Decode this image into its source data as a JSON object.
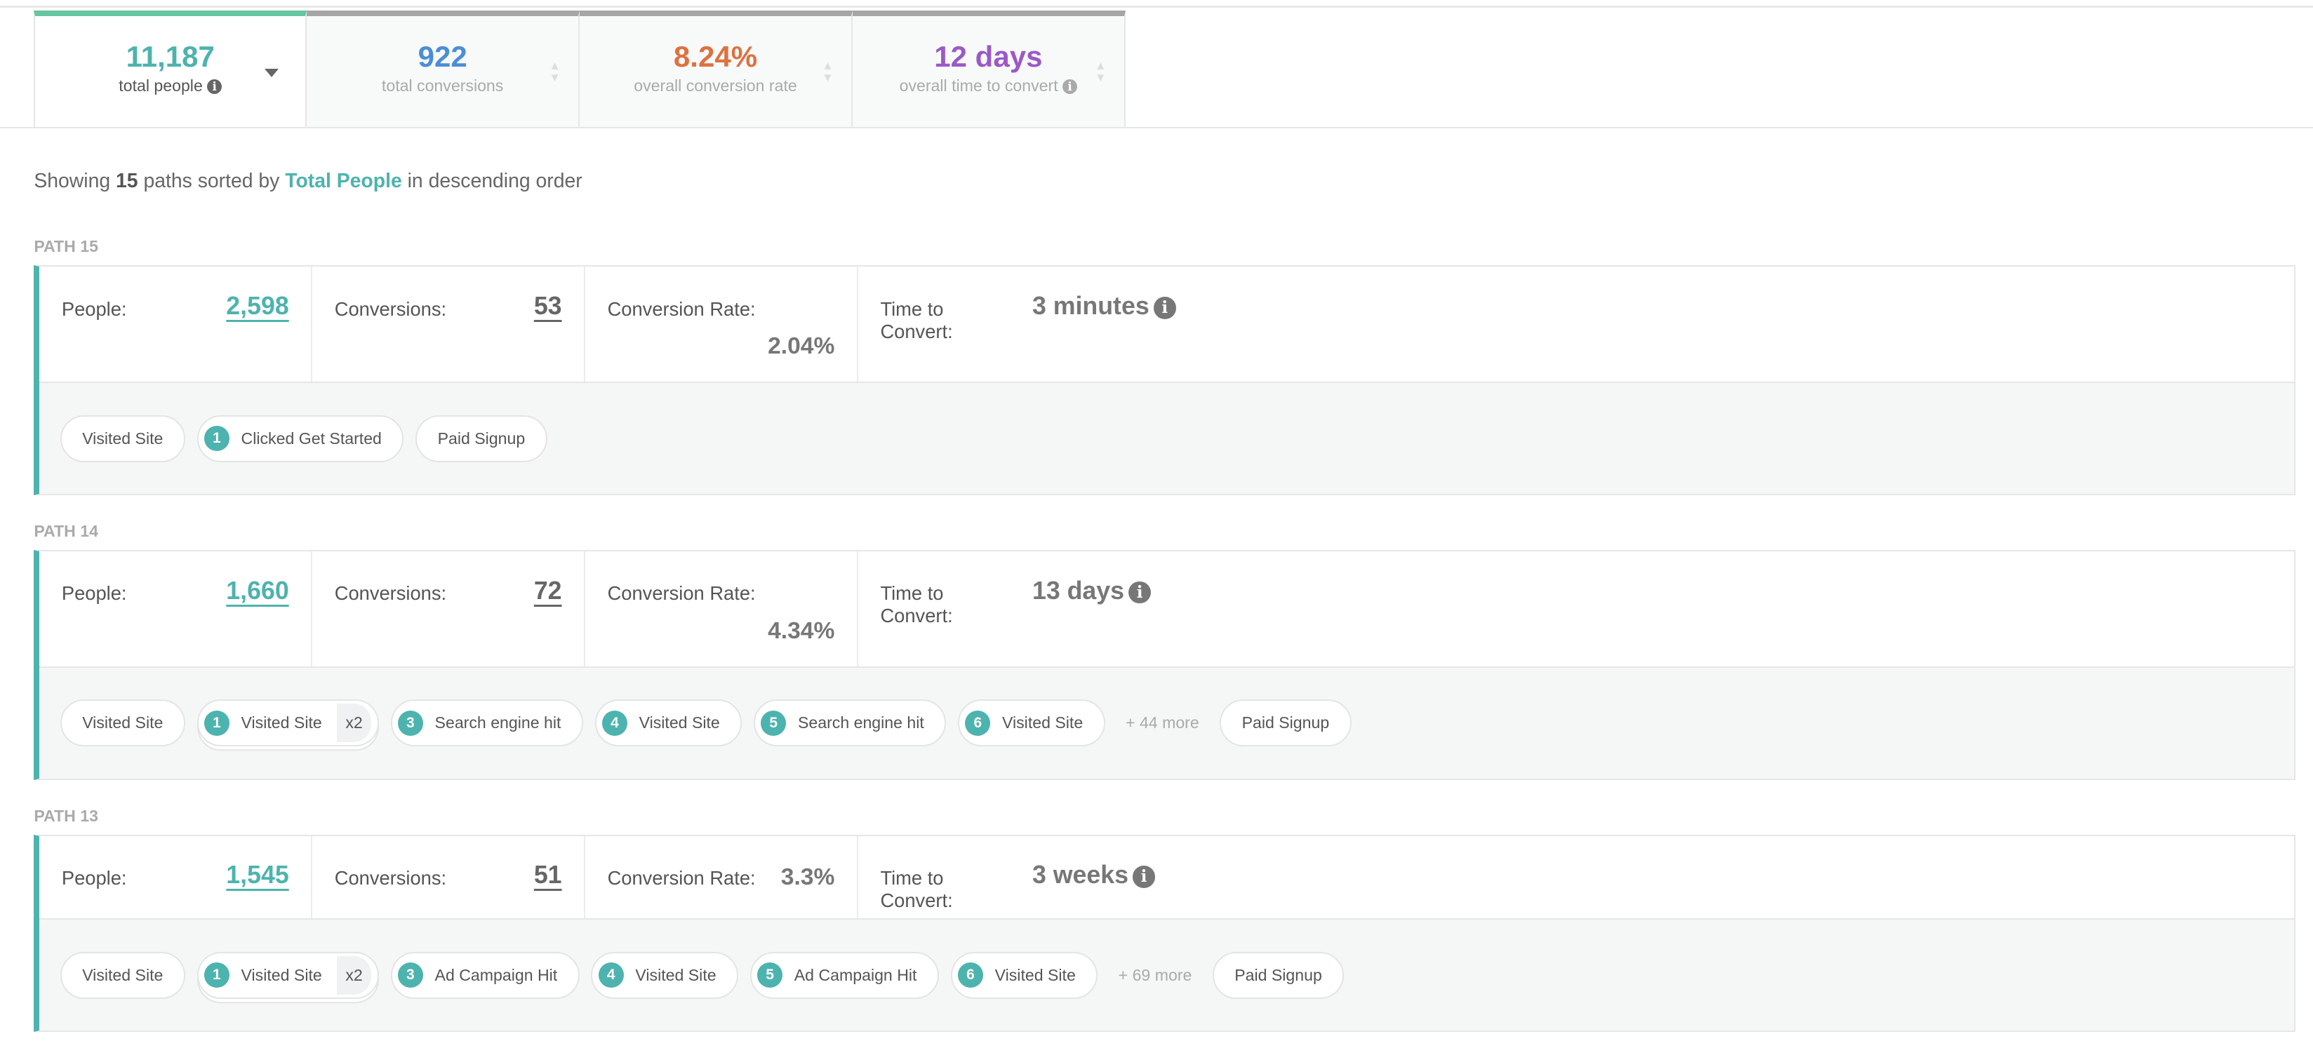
{
  "metrics": [
    {
      "value": "11,187",
      "label": "total people",
      "color": "#4db3ae",
      "active": true,
      "info": true
    },
    {
      "value": "922",
      "label": "total conversions",
      "color": "#4a8fd6",
      "active": false,
      "info": false
    },
    {
      "value": "8.24%",
      "label": "overall conversion rate",
      "color": "#dd7240",
      "active": false,
      "info": false
    },
    {
      "value": "12 days",
      "label": "overall time to convert",
      "color": "#9b59c8",
      "active": false,
      "info": true
    }
  ],
  "summary": {
    "prefix": "Showing ",
    "count": "15",
    "middle": " paths sorted by ",
    "sort_field": "Total People",
    "suffix": " in descending order"
  },
  "labels": {
    "people": "People:",
    "conversions": "Conversions:",
    "rate": "Conversion Rate:",
    "time": "Time to Convert:"
  },
  "paths": [
    {
      "label": "PATH 15",
      "people": "2,598",
      "conversions": "53",
      "rate": "2.04%",
      "time": "3 minutes",
      "steps": [
        {
          "label": "Visited Site"
        },
        {
          "num": "1",
          "label": "Clicked Get Started"
        },
        {
          "label": "Paid Signup"
        }
      ]
    },
    {
      "label": "PATH 14",
      "people": "1,660",
      "conversions": "72",
      "rate": "4.34%",
      "time": "13 days",
      "steps": [
        {
          "label": "Visited Site"
        },
        {
          "num": "1",
          "label": "Visited Site",
          "repeat": "x2"
        },
        {
          "num": "3",
          "label": "Search engine hit"
        },
        {
          "num": "4",
          "label": "Visited Site"
        },
        {
          "num": "5",
          "label": "Search engine hit"
        },
        {
          "num": "6",
          "label": "Visited Site"
        },
        {
          "more": "+ 44 more"
        },
        {
          "label": "Paid Signup"
        }
      ]
    },
    {
      "label": "PATH 13",
      "people": "1,545",
      "conversions": "51",
      "rate": "3.3%",
      "time": "3 weeks",
      "steps": [
        {
          "label": "Visited Site"
        },
        {
          "num": "1",
          "label": "Visited Site",
          "repeat": "x2"
        },
        {
          "num": "3",
          "label": "Ad Campaign Hit"
        },
        {
          "num": "4",
          "label": "Visited Site"
        },
        {
          "num": "5",
          "label": "Ad Campaign Hit"
        },
        {
          "num": "6",
          "label": "Visited Site"
        },
        {
          "more": "+ 69 more"
        },
        {
          "label": "Paid Signup"
        }
      ]
    }
  ]
}
